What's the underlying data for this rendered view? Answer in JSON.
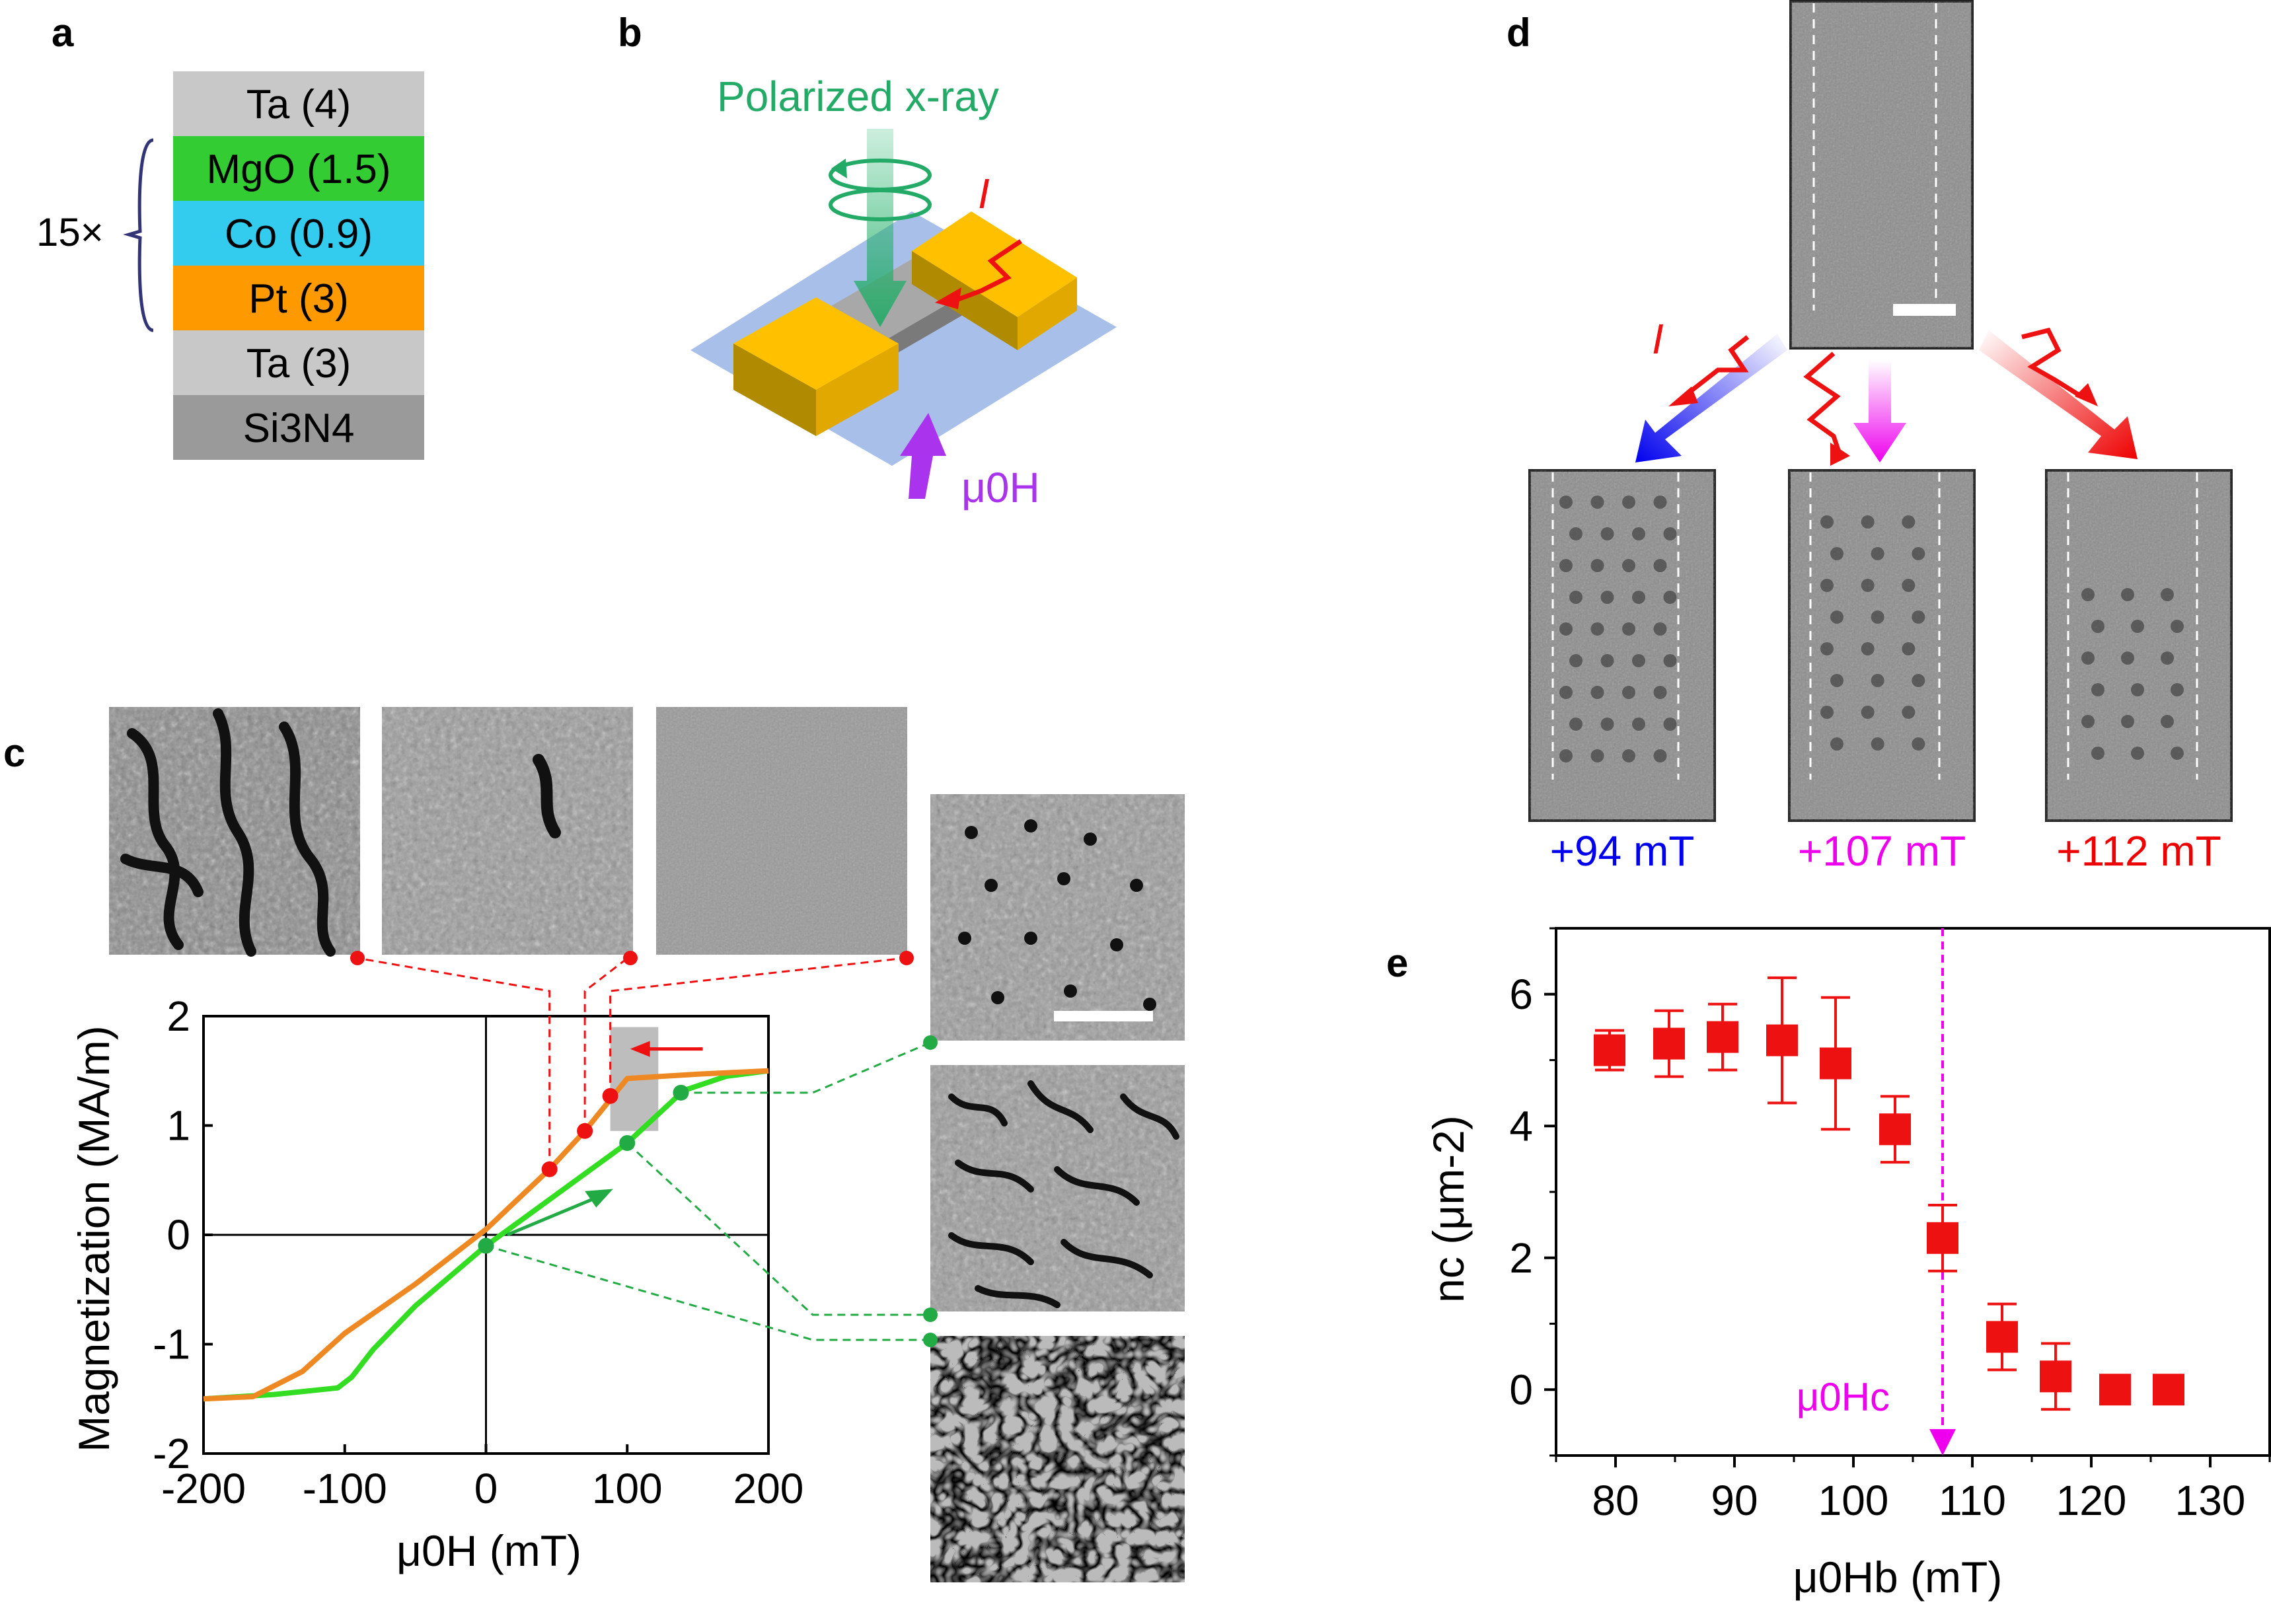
{
  "panels": {
    "a": {
      "label": "a",
      "layers": [
        {
          "text": "Ta (4)",
          "color": "#c8c8c8"
        },
        {
          "text": "MgO (1.5)",
          "color": "#33cc33"
        },
        {
          "text": "Co (0.9)",
          "color": "#33ccee"
        },
        {
          "text": "Pt (3)",
          "color": "#ff9900"
        },
        {
          "text": "Ta (3)",
          "color": "#c8c8c8"
        },
        {
          "text": "Si3N4",
          "color": "#9a9a9a"
        }
      ],
      "repeat_label": "15×"
    },
    "b": {
      "label": "b",
      "xray_label": "Polarized x-ray",
      "current_label": "I",
      "field_label": "μ0H"
    },
    "c": {
      "label": "c",
      "ylabel": "Magnetization (MA/m)",
      "xlabel": "μ0H (mT)"
    },
    "d": {
      "label": "d",
      "current_label": "I",
      "fields": [
        {
          "text": "+94 mT",
          "color": "#0000ee"
        },
        {
          "text": "+107 mT",
          "color": "#ee00ee"
        },
        {
          "text": "+112 mT",
          "color": "#ee0000"
        }
      ]
    },
    "e": {
      "label": "e",
      "ylabel": "nc (μm-2)",
      "xlabel": "μ0Hb (mT)",
      "critical_label": "μ0Hc"
    }
  },
  "colors": {
    "green_sweep": "#33dd22",
    "orange_sweep": "#ee8822",
    "red": "#ee1111",
    "green_marker": "#22aa44",
    "magenta": "#ee00ee",
    "blue": "#0000ee"
  },
  "chart_data": [
    {
      "type": "line",
      "panel": "c",
      "title": "",
      "xlabel": "μ0H (mT)",
      "ylabel": "Magnetization (MA/m)",
      "xlim": [
        -200,
        200
      ],
      "ylim": [
        -2,
        2
      ],
      "xticks": [
        -200,
        -100,
        0,
        100,
        200
      ],
      "yticks": [
        -2,
        -1,
        0,
        1,
        2
      ],
      "xtick_labels": [
        "-200",
        "-100",
        "0",
        "100",
        "200"
      ],
      "ytick_labels": [
        "-2",
        "-1",
        "0",
        "1",
        "2"
      ],
      "series": [
        {
          "name": "increasing field",
          "color": "#33dd22",
          "x": [
            -200,
            -150,
            -105,
            -95,
            -80,
            -50,
            0,
            50,
            100,
            140,
            170,
            200
          ],
          "y": [
            -1.5,
            -1.46,
            -1.4,
            -1.3,
            -1.05,
            -0.65,
            -0.1,
            0.37,
            0.84,
            1.32,
            1.45,
            1.5
          ]
        },
        {
          "name": "decreasing field",
          "color": "#ee8822",
          "x": [
            200,
            150,
            100,
            90,
            70,
            45,
            0,
            -50,
            -100,
            -130,
            -165,
            -200
          ],
          "y": [
            1.5,
            1.47,
            1.43,
            1.27,
            0.95,
            0.6,
            0.05,
            -0.45,
            -0.9,
            -1.25,
            -1.48,
            -1.5
          ]
        }
      ],
      "markers": [
        {
          "x": 45,
          "y": 0.6,
          "color": "#ee1111"
        },
        {
          "x": 70,
          "y": 0.95,
          "color": "#ee1111"
        },
        {
          "x": 88,
          "y": 1.27,
          "color": "#ee1111"
        },
        {
          "x": 0,
          "y": -0.1,
          "color": "#22aa44"
        },
        {
          "x": 100,
          "y": 0.84,
          "color": "#22aa44"
        },
        {
          "x": 138,
          "y": 1.3,
          "color": "#22aa44"
        }
      ]
    },
    {
      "type": "scatter",
      "panel": "e",
      "title": "",
      "xlabel": "μ0Hb (mT)",
      "ylabel": "nc (μm-2)",
      "xlim": [
        75,
        135
      ],
      "ylim": [
        -1,
        7
      ],
      "xticks": [
        80,
        90,
        100,
        110,
        120,
        130
      ],
      "yticks": [
        0,
        2,
        4,
        6
      ],
      "xtick_labels": [
        "80",
        "90",
        "100",
        "110",
        "120",
        "130"
      ],
      "ytick_labels": [
        "0",
        "2",
        "4",
        "6"
      ],
      "critical_field": 107.5,
      "series": [
        {
          "name": "nc",
          "color": "#ee1111",
          "x": [
            79.5,
            84.5,
            89,
            94,
            98.5,
            103.5,
            107.5,
            112.5,
            117,
            122,
            126.5
          ],
          "y": [
            5.15,
            5.25,
            5.35,
            5.3,
            4.95,
            3.95,
            2.3,
            0.8,
            0.2,
            0.0,
            0.0
          ],
          "err": [
            0.3,
            0.5,
            0.5,
            0.95,
            1.0,
            0.5,
            0.5,
            0.5,
            0.5,
            0.0,
            0.0
          ]
        }
      ]
    }
  ]
}
